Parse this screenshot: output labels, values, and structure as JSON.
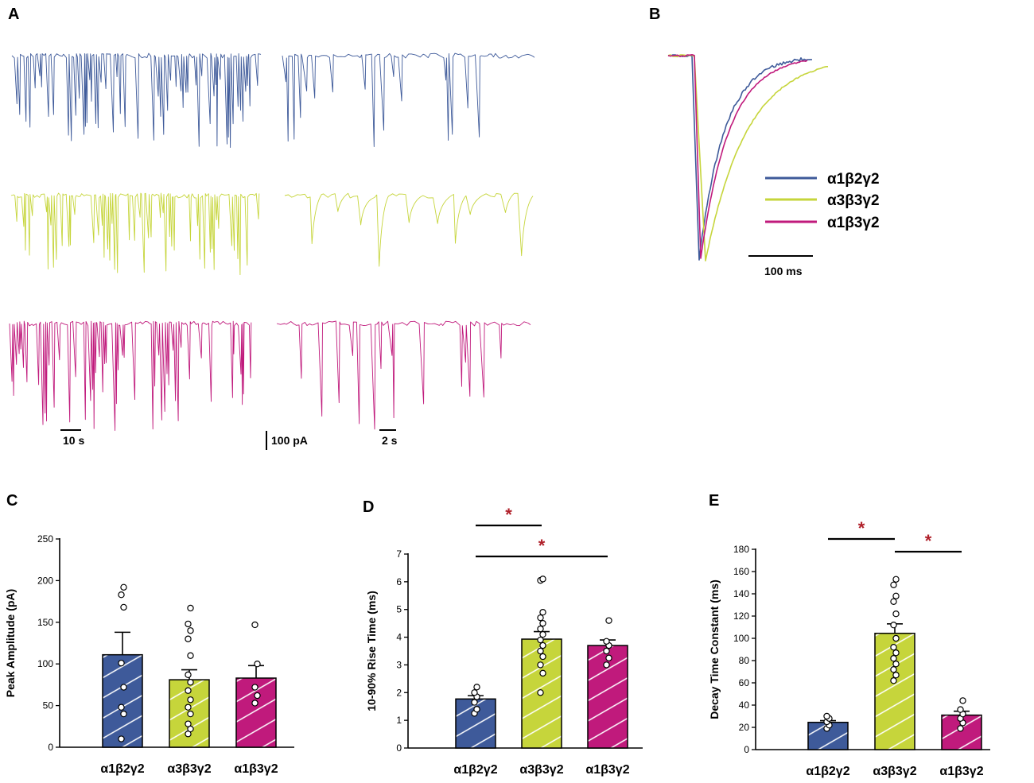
{
  "colors": {
    "a1b2g2": "#3e5a9a",
    "a3b3g2": "#c6d53b",
    "a1b3g2": "#c01a7c",
    "significance": "#b0202a"
  },
  "panels": {
    "A": {
      "label": "A",
      "scale_time_long": "10 s",
      "scale_current": "100 pA",
      "scale_time_short": "2 s"
    },
    "B": {
      "label": "B",
      "scale_time": "100 ms",
      "legend": [
        "α1β2γ2",
        "α3β3γ2",
        "α1β3γ2"
      ]
    }
  },
  "chart_data": [
    {
      "panel": "C",
      "type": "bar",
      "title": "",
      "xlabel": "",
      "ylabel": "Peak Amplitude (pA)",
      "categories": [
        "α1β2γ2",
        "α3β3γ2",
        "α1β3γ2"
      ],
      "values": [
        111,
        81,
        83
      ],
      "errors": [
        27,
        12,
        15
      ],
      "ylim": [
        0,
        250
      ],
      "yticks": [
        "0",
        "50",
        "100",
        "150",
        "200",
        "250"
      ],
      "points": [
        [
          10,
          40,
          48,
          72,
          101,
          168,
          183,
          192
        ],
        [
          16,
          22,
          28,
          40,
          48,
          57,
          68,
          78,
          87,
          110,
          130,
          140,
          148,
          167
        ],
        [
          53,
          62,
          72,
          100,
          147
        ]
      ],
      "significance": []
    },
    {
      "panel": "D",
      "type": "bar",
      "title": "",
      "xlabel": "",
      "ylabel": "10-90% Rise Time (ms)",
      "categories": [
        "α1β2γ2",
        "α3β3γ2",
        "α1β3γ2"
      ],
      "values": [
        1.77,
        3.93,
        3.7
      ],
      "errors": [
        0.12,
        0.27,
        0.2
      ],
      "ylim": [
        0,
        7
      ],
      "yticks": [
        "0",
        "1",
        "2",
        "3",
        "4",
        "5",
        "6",
        "7"
      ],
      "points": [
        [
          1.25,
          1.4,
          1.65,
          1.85,
          2.0,
          2.2
        ],
        [
          2.0,
          2.7,
          3.0,
          3.3,
          3.5,
          3.7,
          3.9,
          4.1,
          4.3,
          4.5,
          4.7,
          4.9,
          6.05,
          6.1
        ],
        [
          3.0,
          3.25,
          3.5,
          3.7,
          3.85,
          4.6
        ]
      ],
      "significance": [
        {
          "from": 0,
          "to": 1,
          "label": "*"
        },
        {
          "from": 0,
          "to": 2,
          "label": "*"
        }
      ]
    },
    {
      "panel": "E",
      "type": "bar",
      "title": "",
      "xlabel": "",
      "ylabel": "Decay Time Constant (ms)",
      "categories": [
        "α1β2γ2",
        "α3β3γ2",
        "α1β3γ2"
      ],
      "values": [
        24.5,
        104.5,
        31
      ],
      "errors": [
        1.5,
        8.5,
        3.5
      ],
      "ylim": [
        0,
        180
      ],
      "yticks": [
        "0",
        "20",
        "40",
        "60",
        "80",
        "100",
        "120",
        "140",
        "160",
        "180"
      ],
      "points": [
        [
          19,
          22,
          25,
          28,
          30
        ],
        [
          62,
          67,
          72,
          77,
          82,
          87,
          92,
          100,
          112,
          122,
          133,
          138,
          148,
          153
        ],
        [
          19,
          24,
          28,
          32,
          36,
          44
        ]
      ],
      "significance": [
        {
          "from": 0,
          "to": 1,
          "label": "*"
        },
        {
          "from": 1,
          "to": 2,
          "label": "*"
        }
      ]
    }
  ]
}
